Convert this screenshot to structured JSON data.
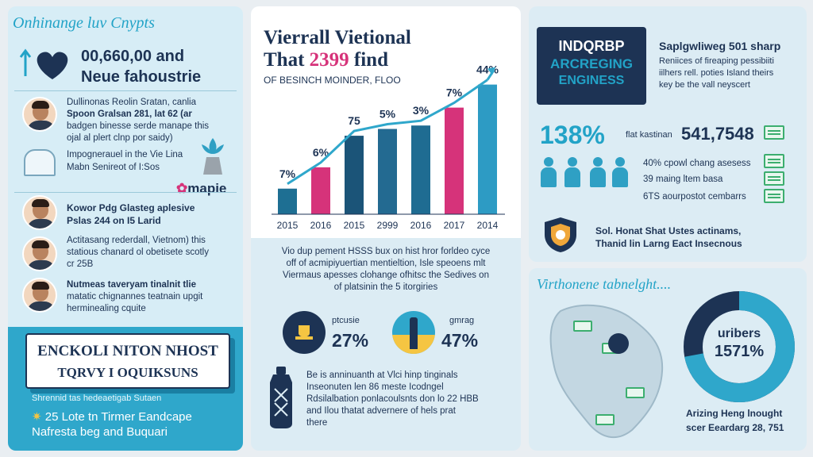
{
  "left": {
    "header": "Onhinange luv Cnypts",
    "big_number": "00,660,00 and",
    "big_sub": "Neue fahoustrie",
    "profile1_lines": [
      "Dullinonas Reolin Sratan, canlia",
      "Spoon Gralsan 281, lat 62 (ar",
      "badgen binesse serde manape this",
      "ojal al plert clnp por saidy)"
    ],
    "list_item1": "Impognerauel in the Vie Lina",
    "list_item2": "Mabn Senireot of I:Sos",
    "brand": "mapie",
    "profile2_lines": [
      "Kowor Pdg Glasteg aplesive",
      "Pslas 244 on I5 Larid"
    ],
    "profile3_lines": [
      "Actitasang rederdall, Vietnom) this",
      "statious chanard ol obetisete scotly",
      "cr 25B"
    ],
    "profile4_lines": [
      "Nutmeas taveryam tinalnit tlie",
      "matatic chignannes teatnain upgit",
      "herminealing cquite"
    ],
    "banner_line1": "ENCKOLI NITON NHOST",
    "banner_line2": "TQRVY I OQUIKSUNS",
    "footer_small": "Shrennid tas hedeaetigab Sutaen",
    "footer_line1": "25 Lote tn Tirmer Eandcape",
    "footer_line2": "Nafresta beg and Buquari"
  },
  "middle": {
    "title_line1": "Vierrall Vietional",
    "title_line2_a": "That",
    "title_line2_num": "2399",
    "title_line2_b": "find",
    "subtitle": "OF BESINCH MOINDER, FLOO",
    "desc_lines": [
      "Vio dup pement HSSS bux on hist hror forldeo cyce",
      "off of acmipiyuertian mentieltion, Isle speoens mlt",
      "Viermaus apesses clohange ofhitsc the Sedives on",
      "of platsinin the 5 itorgiries"
    ],
    "stat1_small": "ptcusie",
    "stat1_value": "27%",
    "stat2_small": "gmrag",
    "stat2_value": "47%",
    "bottom_lines": [
      "Be is anninuanth at Vlci hinp tinginals",
      "Inseonuten len 86 meste Icodngel",
      "Rdsilalbation ponlacoulsnts don lo 22 HBB",
      "and Ilou thatat advernere of hels prat",
      "there"
    ]
  },
  "chart_data": {
    "type": "bar",
    "categories": [
      "2015",
      "2016",
      "2015",
      "2999",
      "2016",
      "2017",
      "2014"
    ],
    "values": [
      30,
      55,
      92,
      100,
      104,
      125,
      152
    ],
    "data_labels": [
      "7%",
      "6%",
      "75",
      "5%",
      "3%",
      "7%",
      "44%"
    ],
    "colors": [
      "#1e6f93",
      "#d6337a",
      "#1b5478",
      "#236a91",
      "#1f6c92",
      "#d6337a",
      "#2d9bc4"
    ],
    "title": "",
    "xlabel": "",
    "ylabel": "",
    "ylim": [
      0,
      160
    ],
    "trend_line": true
  },
  "right": {
    "card_title_line1": "INDQRBP",
    "card_title_line2": "ARCREGING",
    "card_title_line3": "ENGINESS",
    "card_head": "Saplgwliweg 501 sharp",
    "card_lines": [
      "Reniices of fireaping pessibiiti",
      "iilhers rell. poties Island theirs",
      "key be the vall neyscert"
    ],
    "big_pct": "138%",
    "pct_label": "flat kastinan",
    "pct_value": "541,7548",
    "item1": "40% cpowl chang asesess",
    "item2": "39 maing ltem basa",
    "item3": "6TS aourpostot cembarrs",
    "shield_line1": "Sol. Honat Shat Ustes actinams,",
    "shield_line2": "Thanid lin Larng Eact Insecnous",
    "map_title": "Virthonene tabnelght....",
    "donut_label": "uribers",
    "donut_value": "1571%",
    "donut_fraction": 0.72,
    "map_caption1": "Arizing Heng lnought",
    "map_caption2": "scer Eeardarg 28, 751"
  },
  "colors": {
    "navy": "#1d3354",
    "teal": "#22a3c7",
    "magenta": "#d6337a",
    "green": "#3cae6f"
  }
}
